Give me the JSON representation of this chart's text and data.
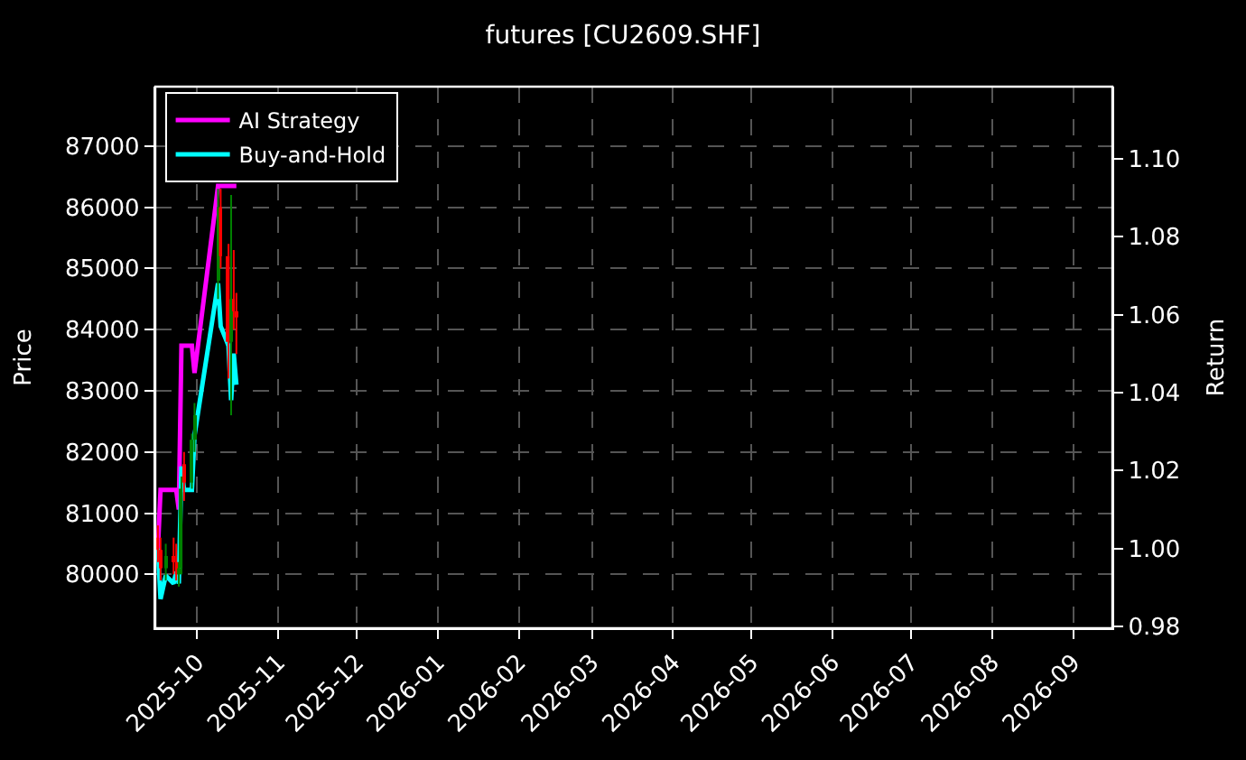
{
  "chart_data": {
    "type": "candlestick",
    "title": "futures [CU2609.SHF]",
    "ylabel": "Price",
    "y2label": "Return",
    "x": [
      "2025-09-16",
      "2025-09-17",
      "2025-09-19",
      "2025-09-22",
      "2025-09-23",
      "2025-09-24",
      "2025-09-25",
      "2025-09-26",
      "2025-09-29",
      "2025-09-30",
      "2025-10-09",
      "2025-10-10",
      "2025-10-13",
      "2025-10-14",
      "2025-10-15",
      "2025-10-16"
    ],
    "ohlc": [
      [
        80600,
        80800,
        80200,
        80400
      ],
      [
        80400,
        80600,
        79900,
        80100
      ],
      [
        80100,
        80500,
        79900,
        80300
      ],
      [
        80300,
        80600,
        80000,
        80200
      ],
      [
        80200,
        80500,
        79900,
        80000
      ],
      [
        80000,
        80200,
        79800,
        80100
      ],
      [
        80100,
        81600,
        80000,
        81400
      ],
      [
        81800,
        82000,
        81200,
        81500
      ],
      [
        81500,
        82300,
        81400,
        82200
      ],
      [
        82200,
        82800,
        82000,
        82600
      ],
      [
        84800,
        86300,
        84500,
        86000
      ],
      [
        86000,
        86300,
        85000,
        85200
      ],
      [
        85200,
        85400,
        83200,
        83800
      ],
      [
        83800,
        86200,
        82600,
        84500
      ],
      [
        84500,
        85300,
        84000,
        84300
      ],
      [
        84300,
        84600,
        83600,
        84200
      ]
    ],
    "colors": [
      "#ff0000",
      "#ff0000",
      "#008000",
      "#ff0000",
      "#ff0000",
      "#008000",
      "#008000",
      "#ff0000",
      "#008000",
      "#008000",
      "#008000",
      "#ff0000",
      "#ff0000",
      "#008000",
      "#ff0000",
      "#ff0000"
    ],
    "series": [
      {
        "name": "AI Strategy",
        "type": "line",
        "axis": "y2",
        "color": "#ff00ff",
        "values": [
          1.0,
          1.015,
          1.015,
          1.015,
          1.015,
          1.01,
          1.052,
          1.052,
          1.052,
          1.045,
          1.093,
          1.093,
          1.093,
          1.093,
          1.093,
          1.093
        ]
      },
      {
        "name": "Buy-and-Hold",
        "type": "line",
        "axis": "y2",
        "color": "#00ffff",
        "values": [
          1.0,
          0.987,
          0.993,
          0.991,
          0.994,
          0.991,
          1.021,
          1.015,
          1.015,
          1.029,
          1.068,
          1.057,
          1.052,
          1.038,
          1.05,
          1.042
        ]
      }
    ],
    "xlim": [
      "2025-09-15",
      "2026-09-16"
    ],
    "xticks": [
      "2025-10",
      "2025-11",
      "2025-12",
      "2026-01",
      "2026-02",
      "2026-03",
      "2026-04",
      "2026-05",
      "2026-06",
      "2026-07",
      "2026-08",
      "2026-09"
    ],
    "ylim": [
      79120,
      87970
    ],
    "yticks": [
      80000,
      81000,
      82000,
      83000,
      84000,
      85000,
      86000,
      87000
    ],
    "y2lim": [
      0.9795,
      1.1185
    ],
    "y2ticks": [
      0.98,
      {
        "value": 1.0,
        "label": "1.00"
      },
      1.02,
      1.04,
      1.06,
      1.08,
      {
        "value": 1.1,
        "label": "1.10"
      }
    ],
    "grid": true,
    "legend": "top left",
    "marker": "none",
    "line_style": "solid"
  }
}
